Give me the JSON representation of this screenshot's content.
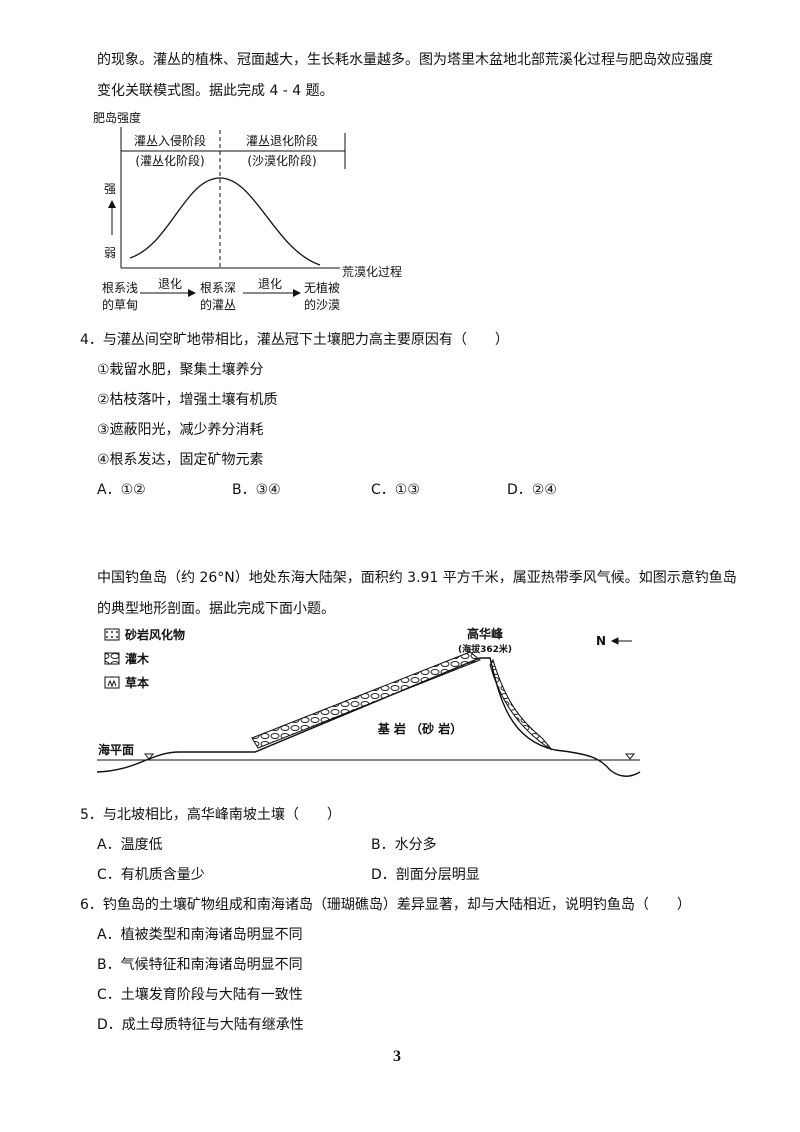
{
  "intro": {
    "lines": [
      "的现象。灌丛的植株、冠面越大，生长耗水量越多。图为塔里木盆地北部荒溪化过程与肥岛效应强度",
      "变化关联模式图。据此完成 4 - 4 题。"
    ]
  },
  "figure1": {
    "y_label": "肥岛强度",
    "stage1": "灌丛入侵阶段",
    "stage1_sub": "(灌丛化阶段)",
    "stage2": "灌丛退化阶段",
    "stage2_sub": "(沙漠化阶段)",
    "strong": "强",
    "weak": "弱",
    "x_label": "荒漠化过程",
    "stages": [
      [
        "根系浅",
        "的草甸"
      ],
      [
        "根系深",
        "的灌丛"
      ],
      [
        "无植被",
        "的沙漠"
      ]
    ],
    "arrows": [
      "退化",
      "退化"
    ]
  },
  "q4": {
    "stem": "4．与灌丛间空旷地带相比，灌丛冠下土壤肥力高主要原因有（　　）",
    "items": [
      "①栽留水肥，聚集土壤养分",
      "②枯枝落叶，增强土壤有机质",
      "③遮蔽阳光，减少养分消耗",
      "④根系发达，固定矿物元素"
    ],
    "options": [
      "A．①②",
      "B．③④",
      "C．①③",
      "D．②④"
    ]
  },
  "passage2": {
    "lines": [
      "中国钓鱼岛（约 26°N）地处东海大陆架，面积约 3.91 平方千米，属亚热带季风气候。如图示意钓鱼岛",
      "的典型地形剖面。据此完成下面小题。"
    ]
  },
  "figure2": {
    "legend": [
      "砂岩风化物",
      "灌木",
      "草本"
    ],
    "peak": "高华峰",
    "peak_elev": "(海拔362米)",
    "bedrock": "基 岩 （砂 岩）",
    "sea": "海平面",
    "north": "N"
  },
  "q5": {
    "stem": "5．与北坡相比，高华峰南坡土壤（　　）",
    "options": [
      "A．温度低",
      "B．水分多",
      "C．有机质含量少",
      "D．剖面分层明显"
    ]
  },
  "q6": {
    "stem": "6．钓鱼岛的土壤矿物组成和南海诸岛（珊瑚礁岛）差异显著，却与大陆相近，说明钓鱼岛（　　）",
    "options": [
      "A．植被类型和南海诸岛明显不同",
      "B．气候特征和南海诸岛明显不同",
      "C．土壤发育阶段与大陆有一致性",
      "D．成土母质特征与大陆有继承性"
    ]
  },
  "page_number": "3"
}
